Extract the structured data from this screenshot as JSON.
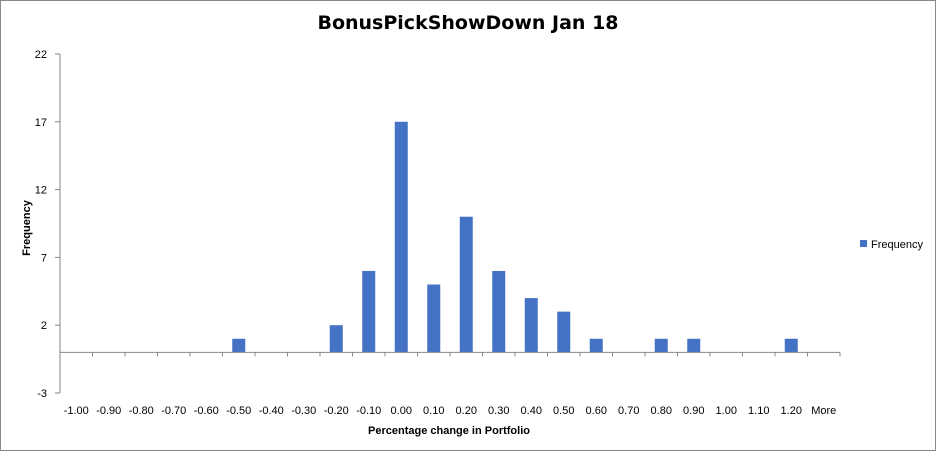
{
  "chart_data": {
    "type": "bar",
    "title": "BonusPickShowDown Jan 18",
    "xlabel": "Percentage change  in Portfolio",
    "ylabel": "Frequency",
    "categories": [
      "-1.00",
      "-0.90",
      "-0.80",
      "-0.70",
      "-0.60",
      "-0.50",
      "-0.40",
      "-0.30",
      "-0.20",
      "-0.10",
      "0.00",
      "0.10",
      "0.20",
      "0.30",
      "0.40",
      "0.50",
      "0.60",
      "0.70",
      "0.80",
      "0.90",
      "1.00",
      "1.10",
      "1.20",
      "More"
    ],
    "series": [
      {
        "name": "Frequency",
        "values": [
          0,
          0,
          0,
          0,
          0,
          1,
          0,
          0,
          2,
          6,
          17,
          5,
          10,
          6,
          4,
          3,
          1,
          0,
          1,
          1,
          0,
          0,
          1,
          0
        ]
      }
    ],
    "yticks": [
      "22",
      "17",
      "12",
      "7",
      "2",
      "-3"
    ],
    "ytick_values": [
      22,
      17,
      12,
      7,
      2,
      -3
    ],
    "ylim": [
      -3,
      22
    ],
    "bar_color": "#4472C4",
    "grid": false,
    "legend_position": "right"
  }
}
